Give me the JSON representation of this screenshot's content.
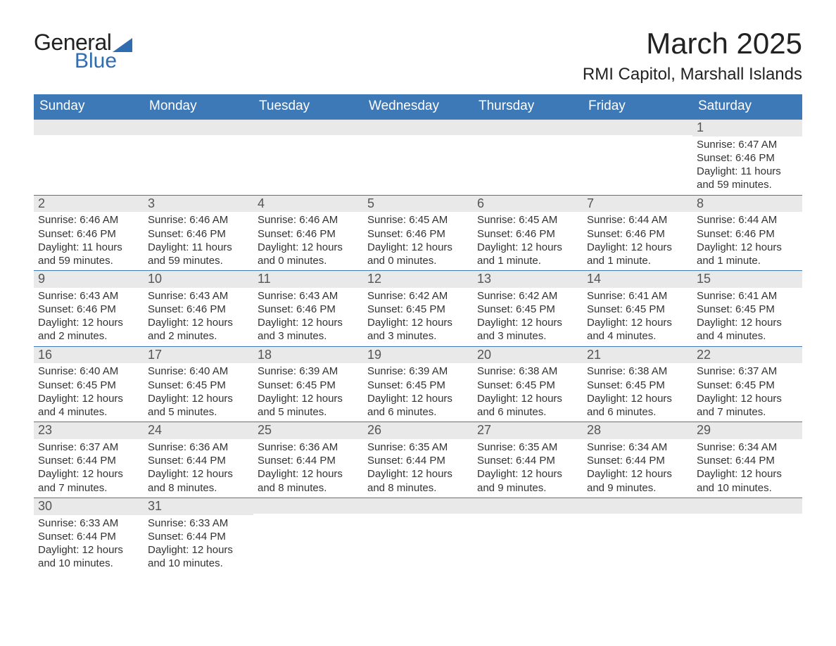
{
  "logo": {
    "word1": "General",
    "word2": "Blue",
    "accent_color": "#2f6db0"
  },
  "title": {
    "month": "March 2025",
    "location": "RMI Capitol, Marshall Islands"
  },
  "colors": {
    "header_bg": "#3d78b7",
    "header_text": "#ffffff",
    "daynum_bg": "#e9e9e9",
    "body_text": "#333333"
  },
  "weekdays": [
    "Sunday",
    "Monday",
    "Tuesday",
    "Wednesday",
    "Thursday",
    "Friday",
    "Saturday"
  ],
  "grid": [
    [
      null,
      null,
      null,
      null,
      null,
      null,
      {
        "d": "1",
        "sr": "6:47 AM",
        "ss": "6:46 PM",
        "dl": "11 hours and 59 minutes."
      }
    ],
    [
      {
        "d": "2",
        "sr": "6:46 AM",
        "ss": "6:46 PM",
        "dl": "11 hours and 59 minutes."
      },
      {
        "d": "3",
        "sr": "6:46 AM",
        "ss": "6:46 PM",
        "dl": "11 hours and 59 minutes."
      },
      {
        "d": "4",
        "sr": "6:46 AM",
        "ss": "6:46 PM",
        "dl": "12 hours and 0 minutes."
      },
      {
        "d": "5",
        "sr": "6:45 AM",
        "ss": "6:46 PM",
        "dl": "12 hours and 0 minutes."
      },
      {
        "d": "6",
        "sr": "6:45 AM",
        "ss": "6:46 PM",
        "dl": "12 hours and 1 minute."
      },
      {
        "d": "7",
        "sr": "6:44 AM",
        "ss": "6:46 PM",
        "dl": "12 hours and 1 minute."
      },
      {
        "d": "8",
        "sr": "6:44 AM",
        "ss": "6:46 PM",
        "dl": "12 hours and 1 minute."
      }
    ],
    [
      {
        "d": "9",
        "sr": "6:43 AM",
        "ss": "6:46 PM",
        "dl": "12 hours and 2 minutes."
      },
      {
        "d": "10",
        "sr": "6:43 AM",
        "ss": "6:46 PM",
        "dl": "12 hours and 2 minutes."
      },
      {
        "d": "11",
        "sr": "6:43 AM",
        "ss": "6:46 PM",
        "dl": "12 hours and 3 minutes."
      },
      {
        "d": "12",
        "sr": "6:42 AM",
        "ss": "6:45 PM",
        "dl": "12 hours and 3 minutes."
      },
      {
        "d": "13",
        "sr": "6:42 AM",
        "ss": "6:45 PM",
        "dl": "12 hours and 3 minutes."
      },
      {
        "d": "14",
        "sr": "6:41 AM",
        "ss": "6:45 PM",
        "dl": "12 hours and 4 minutes."
      },
      {
        "d": "15",
        "sr": "6:41 AM",
        "ss": "6:45 PM",
        "dl": "12 hours and 4 minutes."
      }
    ],
    [
      {
        "d": "16",
        "sr": "6:40 AM",
        "ss": "6:45 PM",
        "dl": "12 hours and 4 minutes."
      },
      {
        "d": "17",
        "sr": "6:40 AM",
        "ss": "6:45 PM",
        "dl": "12 hours and 5 minutes."
      },
      {
        "d": "18",
        "sr": "6:39 AM",
        "ss": "6:45 PM",
        "dl": "12 hours and 5 minutes."
      },
      {
        "d": "19",
        "sr": "6:39 AM",
        "ss": "6:45 PM",
        "dl": "12 hours and 6 minutes."
      },
      {
        "d": "20",
        "sr": "6:38 AM",
        "ss": "6:45 PM",
        "dl": "12 hours and 6 minutes."
      },
      {
        "d": "21",
        "sr": "6:38 AM",
        "ss": "6:45 PM",
        "dl": "12 hours and 6 minutes."
      },
      {
        "d": "22",
        "sr": "6:37 AM",
        "ss": "6:45 PM",
        "dl": "12 hours and 7 minutes."
      }
    ],
    [
      {
        "d": "23",
        "sr": "6:37 AM",
        "ss": "6:44 PM",
        "dl": "12 hours and 7 minutes."
      },
      {
        "d": "24",
        "sr": "6:36 AM",
        "ss": "6:44 PM",
        "dl": "12 hours and 8 minutes."
      },
      {
        "d": "25",
        "sr": "6:36 AM",
        "ss": "6:44 PM",
        "dl": "12 hours and 8 minutes."
      },
      {
        "d": "26",
        "sr": "6:35 AM",
        "ss": "6:44 PM",
        "dl": "12 hours and 8 minutes."
      },
      {
        "d": "27",
        "sr": "6:35 AM",
        "ss": "6:44 PM",
        "dl": "12 hours and 9 minutes."
      },
      {
        "d": "28",
        "sr": "6:34 AM",
        "ss": "6:44 PM",
        "dl": "12 hours and 9 minutes."
      },
      {
        "d": "29",
        "sr": "6:34 AM",
        "ss": "6:44 PM",
        "dl": "12 hours and 10 minutes."
      }
    ],
    [
      {
        "d": "30",
        "sr": "6:33 AM",
        "ss": "6:44 PM",
        "dl": "12 hours and 10 minutes."
      },
      {
        "d": "31",
        "sr": "6:33 AM",
        "ss": "6:44 PM",
        "dl": "12 hours and 10 minutes."
      },
      null,
      null,
      null,
      null,
      null
    ]
  ],
  "labels": {
    "sunrise": "Sunrise: ",
    "sunset": "Sunset: ",
    "daylight": "Daylight: "
  }
}
